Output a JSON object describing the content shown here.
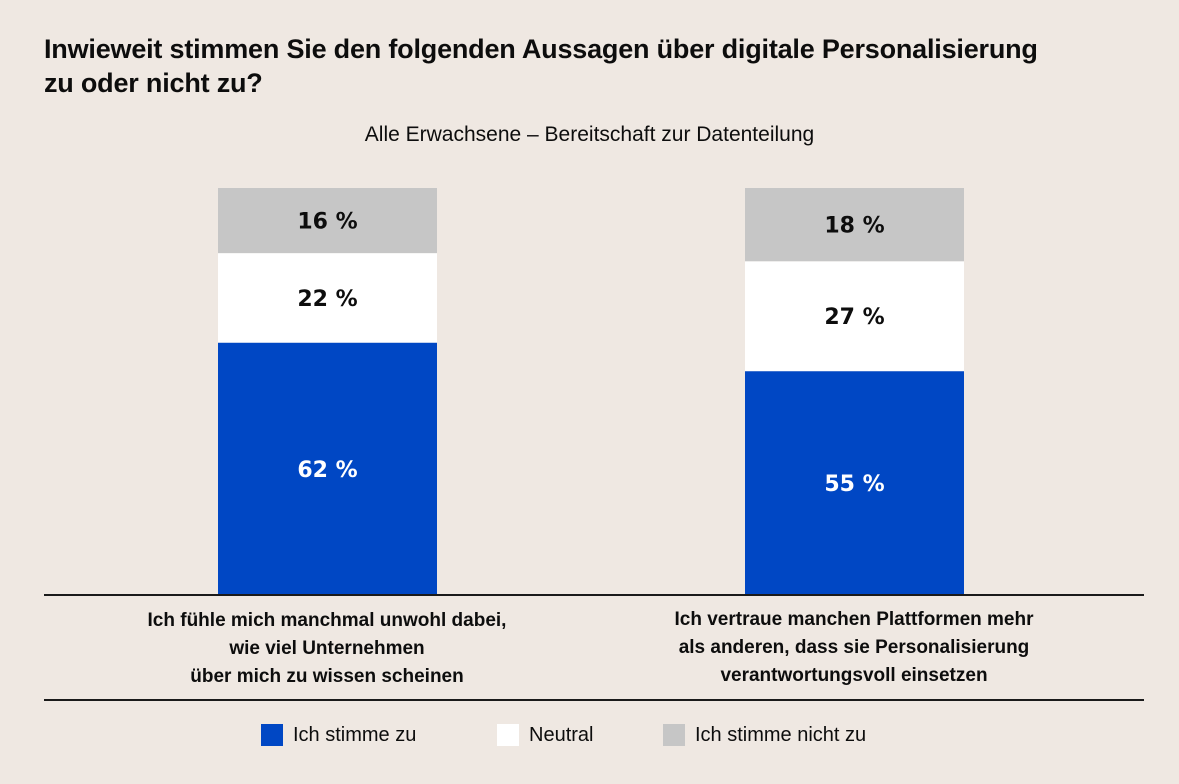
{
  "title": "Inwieweit stimmen Sie den folgenden Aussagen über digitale Personalisierung zu oder nicht zu?",
  "subtitle": "Alle Erwachsene – Bereitschaft zur Datenteilung",
  "colors": {
    "background": "#efe8e2",
    "agree": "#0047c4",
    "neutral": "#ffffff",
    "disagree": "#c6c6c6"
  },
  "legend": [
    {
      "label": "Ich stimme zu",
      "color": "#0047c4"
    },
    {
      "label": "Neutral",
      "color": "#ffffff"
    },
    {
      "label": "Ich stimme nicht zu",
      "color": "#c6c6c6"
    }
  ],
  "chart_data": {
    "type": "bar",
    "stacked": true,
    "title": "Inwieweit stimmen Sie den folgenden Aussagen über digitale Personalisierung zu oder nicht zu?",
    "subtitle": "Alle Erwachsene – Bereitschaft zur Datenteilung",
    "categories": [
      "Ich fühle mich manchmal unwohl dabei, wie viel Unternehmen über mich zu wissen scheinen",
      "Ich vertraue manchen Plattformen mehr als anderen, dass sie Personalisierung verantwortungsvoll einsetzen"
    ],
    "category_lines": [
      [
        "Ich fühle mich manchmal unwohl dabei,",
        "wie viel Unternehmen",
        "über mich zu wissen scheinen"
      ],
      [
        "Ich vertraue manchen Plattformen mehr",
        "als anderen, dass sie Personalisierung",
        "verantwortungsvoll einsetzen"
      ]
    ],
    "series": [
      {
        "name": "Ich stimme zu",
        "values": [
          62,
          55
        ],
        "labels": [
          "62 %",
          "55 %"
        ]
      },
      {
        "name": "Neutral",
        "values": [
          22,
          27
        ],
        "labels": [
          "22 %",
          "27 %"
        ]
      },
      {
        "name": "Ich stimme nicht zu",
        "values": [
          16,
          18
        ],
        "labels": [
          "16 %",
          "18 %"
        ]
      }
    ],
    "xlabel": "",
    "ylabel": "",
    "ylim": [
      0,
      100
    ],
    "unit": "%",
    "grid": false,
    "legend_position": "bottom"
  }
}
